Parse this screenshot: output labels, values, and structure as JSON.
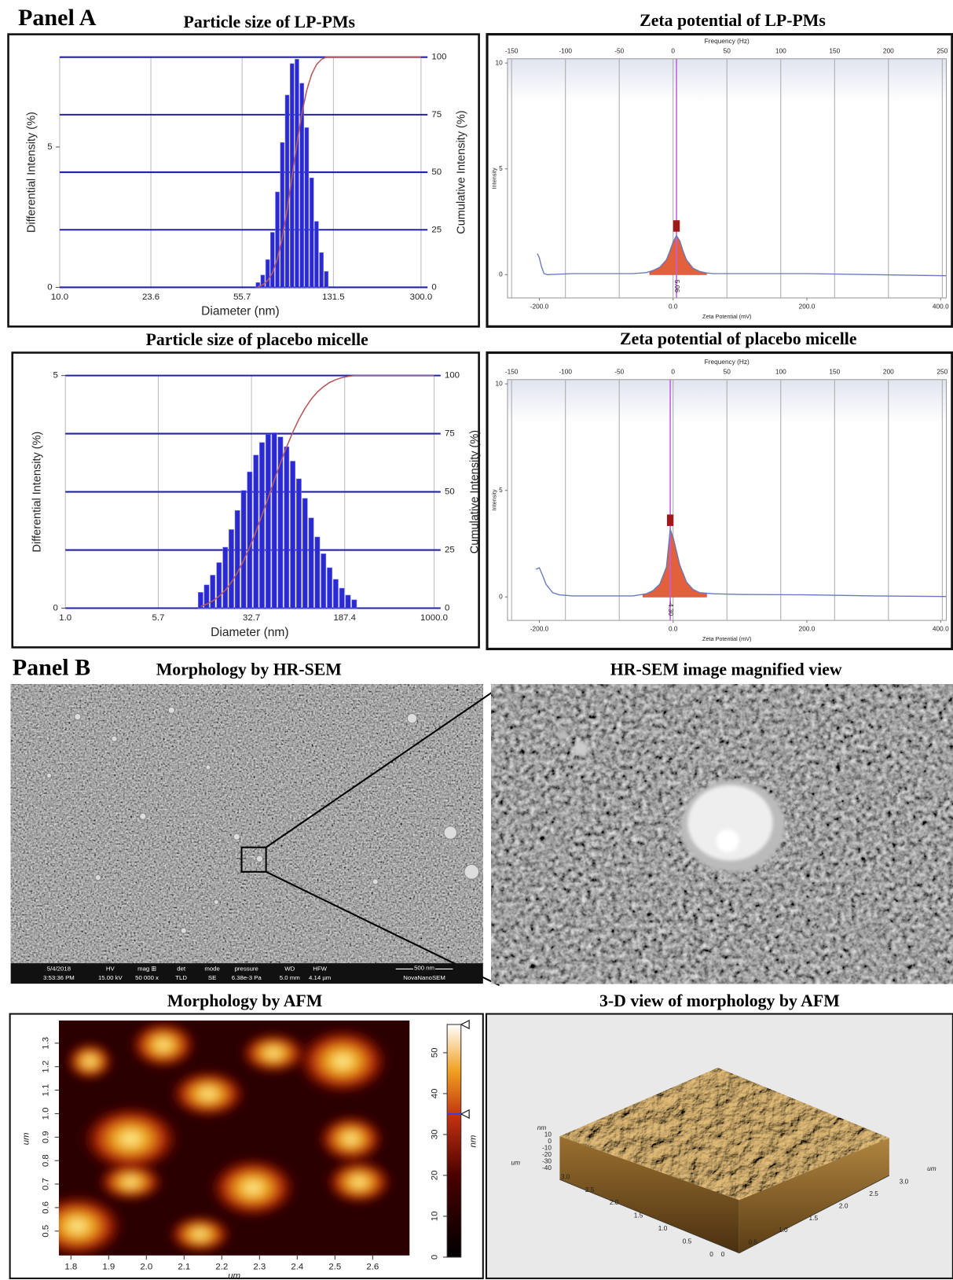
{
  "panel_a_label": "Panel A",
  "panel_b_label": "Panel B",
  "chart_data": [
    {
      "type": "bar",
      "title": "Particle size of LP-PMs",
      "xlabel": "Diameter (nm)",
      "ylabel": "Differential Intensity (%)",
      "y2label": "Cumulative Intensity (%)",
      "log_x": true,
      "xlim": [
        10,
        300
      ],
      "xticks": [
        {
          "value": 10,
          "label": "10.0"
        },
        23.6,
        55.7,
        131.5,
        {
          "value": 300,
          "label": "300.0"
        }
      ],
      "ylim": [
        0,
        8.2
      ],
      "yticks": [
        0,
        5
      ],
      "y2lim": [
        0,
        100
      ],
      "y2ticks": [
        0,
        25,
        50,
        75,
        100
      ],
      "grid": true,
      "bars": {
        "color": "#2a2ad0",
        "x": [
          64.6,
          67.6,
          70.8,
          74.1,
          77.6,
          81.3,
          85.1,
          89.1,
          93.3,
          97.7,
          102.3,
          107.2,
          112.2,
          117.5,
          123.0
        ],
        "values": [
          0.17,
          0.44,
          0.99,
          1.96,
          3.4,
          5.16,
          6.85,
          7.97,
          8.13,
          7.27,
          5.69,
          3.9,
          2.35,
          1.24,
          0.57
        ]
      },
      "cumulative": {
        "axis": "y2",
        "color": "#b85a5a",
        "x": [
          64.6,
          67.6,
          70.8,
          74.1,
          77.6,
          81.3,
          85.1,
          89.1,
          93.3,
          97.7,
          102.3,
          107.2,
          112.2,
          117.5,
          123.0,
          300
        ],
        "values": [
          0.3,
          1.1,
          2.9,
          6.3,
          12.4,
          21.6,
          33.8,
          48.0,
          62.5,
          75.4,
          85.6,
          92.6,
          96.8,
          99.0,
          100,
          100
        ]
      }
    },
    {
      "type": "line",
      "title": "Zeta potential of LP-PMs",
      "xlabel": "Zeta Potential (mV)",
      "ylabel": "Intensity",
      "x2label": "Frequency (Hz)",
      "xlim": [
        -247.6,
        408.5
      ],
      "xticks": [
        {
          "value": -200,
          "label": "-200.0"
        },
        {
          "value": 0,
          "label": "0.0"
        },
        {
          "value": 200,
          "label": "200.0"
        },
        {
          "value": 400,
          "label": "400.0"
        }
      ],
      "x2lim": [
        -153.8,
        253.8
      ],
      "x2ticks": [
        -150,
        -100,
        -50,
        0,
        50,
        100,
        150,
        200,
        250
      ],
      "ylim": [
        -1.1,
        10.2
      ],
      "yticks": [
        0,
        5,
        10
      ],
      "grid": true,
      "line": {
        "color": "#6878b8",
        "x": [
          -203,
          -200,
          -197,
          -193,
          -188,
          -150,
          -100,
          -60,
          -40,
          -30,
          -20,
          -10,
          -5,
          0,
          5,
          10,
          15,
          20,
          30,
          40,
          50,
          60,
          100,
          200,
          300,
          408
        ],
        "values": [
          1.0,
          0.8,
          0.4,
          0.05,
          0.0,
          0.05,
          0.05,
          0.05,
          0.1,
          0.2,
          0.35,
          0.7,
          1.1,
          1.55,
          1.85,
          1.6,
          1.1,
          0.7,
          0.3,
          0.15,
          0.08,
          0.05,
          0.05,
          0.05,
          0.0,
          -0.05
        ]
      },
      "peak_area": {
        "color": "#e2603c",
        "x": [
          -35,
          -30,
          -20,
          -10,
          -5,
          0,
          5,
          10,
          15,
          20,
          30,
          40,
          50
        ],
        "values": [
          0.12,
          0.2,
          0.35,
          0.7,
          1.1,
          1.55,
          1.85,
          1.6,
          1.1,
          0.7,
          0.3,
          0.15,
          0.08
        ]
      },
      "peak": {
        "x": 5.06,
        "marker": 2.3,
        "color": "#c060e0",
        "marker_color": "#a01818"
      }
    },
    {
      "type": "bar",
      "title": "Particle size of placebo micelle",
      "xlabel": "Diameter (nm)",
      "ylabel": "Differential Intensity (%)",
      "y2label": "Cumulative Intensity (%)",
      "log_x": true,
      "xlim": [
        1,
        1000
      ],
      "xticks": [
        {
          "value": 1,
          "label": "1.0"
        },
        5.7,
        32.7,
        187.4,
        {
          "value": 1000,
          "label": "1000.0"
        }
      ],
      "ylim": [
        0,
        5
      ],
      "yticks": [
        0,
        5
      ],
      "y2lim": [
        0,
        100
      ],
      "y2ticks": [
        0,
        25,
        50,
        75,
        100
      ],
      "grid": true,
      "bars": {
        "color": "#2a2ad0",
        "x": [
          12.6,
          14.1,
          15.8,
          17.8,
          20.0,
          22.4,
          25.1,
          28.2,
          31.6,
          35.5,
          39.8,
          44.7,
          50.1,
          56.2,
          63.1,
          70.8,
          79.4,
          89.1,
          100,
          112.2,
          125.9,
          141.3,
          158.5,
          177.8,
          199.5,
          223.9
        ],
        "values": [
          0.34,
          0.5,
          0.71,
          0.98,
          1.31,
          1.69,
          2.1,
          2.53,
          2.93,
          3.29,
          3.56,
          3.73,
          3.77,
          3.68,
          3.47,
          3.16,
          2.78,
          2.36,
          1.94,
          1.53,
          1.17,
          0.87,
          0.62,
          0.43,
          0.28,
          0.18
        ]
      },
      "cumulative": {
        "axis": "y2",
        "color": "#b85a5a",
        "x": [
          12.6,
          14.1,
          15.8,
          17.8,
          20.0,
          22.4,
          25.1,
          28.2,
          31.6,
          35.5,
          39.8,
          44.7,
          50.1,
          56.2,
          63.1,
          70.8,
          79.4,
          89.1,
          100,
          112.2,
          125.9,
          141.3,
          158.5,
          177.8,
          199.5,
          223.9,
          1000
        ],
        "values": [
          0.7,
          1.7,
          3.1,
          5.1,
          7.7,
          11.1,
          15.3,
          20.4,
          26.2,
          32.8,
          40.0,
          47.4,
          55.0,
          62.4,
          69.3,
          75.6,
          81.2,
          85.9,
          89.8,
          92.9,
          95.2,
          97.0,
          98.2,
          99.1,
          99.6,
          100,
          100
        ]
      }
    },
    {
      "type": "line",
      "title": "Zeta potential of placebo micelle",
      "xlabel": "Zeta Potential (mV)",
      "ylabel": "Intensity",
      "x2label": "Frequency (Hz)",
      "xlim": [
        -247.6,
        408.5
      ],
      "xticks": [
        {
          "value": -200,
          "label": "-200.0"
        },
        {
          "value": 0,
          "label": "0.0"
        },
        {
          "value": 200,
          "label": "200.0"
        },
        {
          "value": 400,
          "label": "400.0"
        }
      ],
      "x2lim": [
        -153.8,
        253.8
      ],
      "x2ticks": [
        -150,
        -100,
        -50,
        0,
        50,
        100,
        150,
        200,
        250
      ],
      "ylim": [
        -1.1,
        10.2
      ],
      "yticks": [
        0,
        5,
        10
      ],
      "grid": true,
      "line": {
        "color": "#6878b8",
        "x": [
          -205,
          -200,
          -195,
          -190,
          -180,
          -170,
          -150,
          -100,
          -60,
          -40,
          -30,
          -20,
          -10,
          -4.3,
          0,
          10,
          20,
          30,
          40,
          60,
          100,
          200,
          300,
          408
        ],
        "values": [
          1.3,
          1.37,
          1.0,
          0.6,
          0.2,
          0.1,
          0.05,
          0.05,
          0.05,
          0.15,
          0.3,
          0.6,
          1.4,
          3.17,
          2.8,
          1.5,
          0.7,
          0.35,
          0.2,
          0.15,
          0.12,
          0.1,
          0.05,
          0.02
        ]
      },
      "peak_area": {
        "color": "#e2603c",
        "x": [
          -45,
          -40,
          -30,
          -20,
          -10,
          -4.3,
          0,
          10,
          20,
          30,
          40,
          50
        ],
        "values": [
          0.1,
          0.15,
          0.3,
          0.6,
          1.4,
          3.17,
          2.8,
          1.5,
          0.7,
          0.35,
          0.2,
          0.17
        ]
      },
      "peak": {
        "x": {
          "value": -4.3,
          "label": "-4.30"
        },
        "marker": 3.6,
        "color": "#c060e0",
        "marker_color": "#a01818"
      }
    }
  ],
  "sem": {
    "title": "Morphology by HR-SEM",
    "magnified_title": "HR-SEM image magnified view",
    "info_bar": {
      "date": "5/4/2018",
      "time": "3:53:36 PM",
      "fields": [
        [
          "HV",
          "15.00 kV"
        ],
        [
          "mag ⊞",
          "50 000 x"
        ],
        [
          "det",
          "TLD"
        ],
        [
          "mode",
          "SE"
        ],
        [
          "pressure",
          "6.38e-3 Pa"
        ],
        [
          "WD",
          "5.0 mm"
        ],
        [
          "HFW",
          "4.14 µm"
        ]
      ],
      "scale_bar": "500 nm",
      "instrument": "NovaNanoSEM"
    }
  },
  "afm_map": {
    "title": "Morphology by AFM",
    "xlabel": "um",
    "ylabel": "um",
    "xlim": [
      1.768,
      2.698
    ],
    "xticks": [
      1.8,
      1.9,
      {
        "value": 2,
        "label": "2.0"
      },
      2.1,
      2.2,
      2.3,
      2.4,
      2.5,
      2.6
    ],
    "ylim": [
      0.396,
      1.397
    ],
    "yticks": [
      0.5,
      0.6,
      0.7,
      0.8,
      0.9,
      {
        "value": 1,
        "label": "1.0"
      },
      1.1,
      1.2,
      1.3
    ],
    "colorbar": {
      "label": "nm",
      "lim": [
        0,
        56.9
      ],
      "ticks": [
        0,
        10,
        20,
        30,
        40,
        50
      ],
      "markers": [
        56.9,
        35
      ]
    }
  },
  "afm_3d": {
    "title": "3-D view of morphology by AFM",
    "z_unit": "nm",
    "z_ticks": [
      "10",
      "0",
      "-10",
      "-20",
      "-30",
      "-40"
    ],
    "y_unit": "um",
    "y_ticks": [
      "3.0",
      "2.5",
      "2.0",
      "1.5",
      "1.0",
      "0.5",
      "0"
    ],
    "x_unit": "um",
    "x_ticks": [
      "0",
      "0.5",
      "1.0",
      "1.5",
      "2.0",
      "2.5",
      "3.0"
    ]
  }
}
